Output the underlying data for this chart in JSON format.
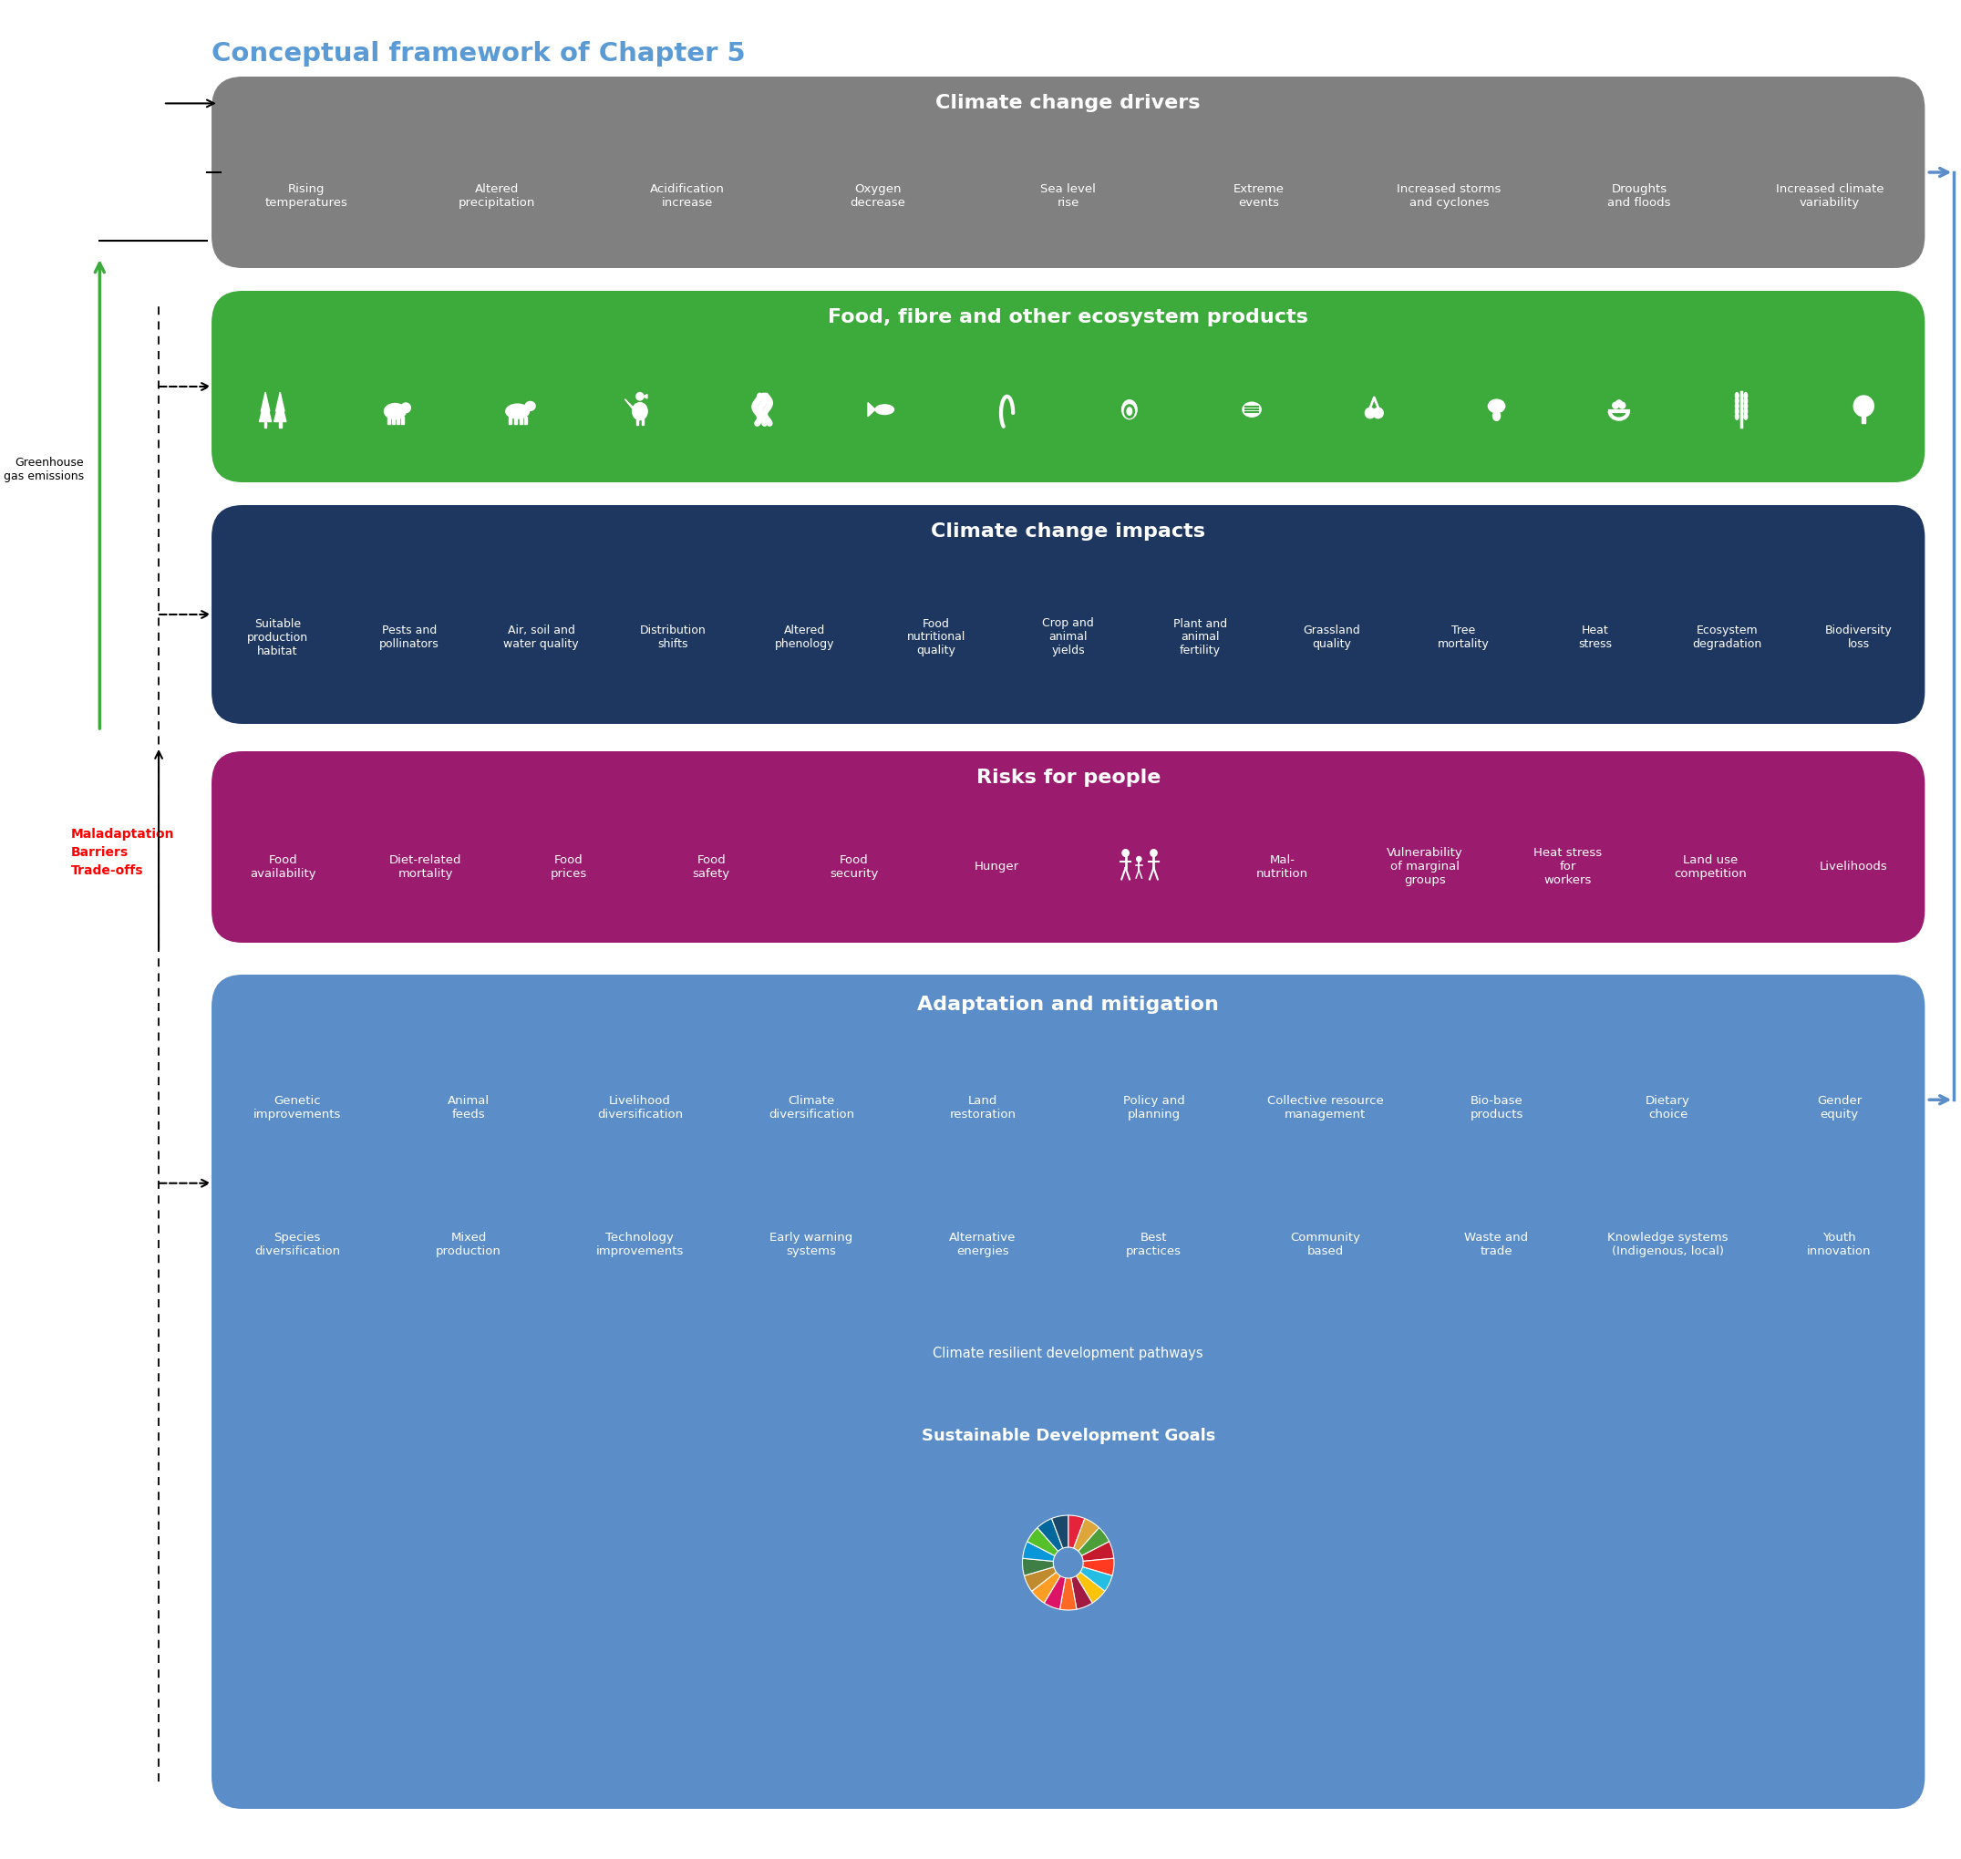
{
  "title": "Conceptual framework of Chapter 5",
  "title_color": "#5B9BD5",
  "bg_color": "#FFFFFF",
  "section1": {
    "title": "Climate change drivers",
    "bg_color": "#808080",
    "title_color": "#FFFFFF",
    "items": [
      "Rising\ntemperatures",
      "Altered\nprecipitation",
      "Acidification\nincrease",
      "Oxygen\ndecrease",
      "Sea level\nrise",
      "Extreme\nevents",
      "Increased storms\nand cyclones",
      "Droughts\nand floods",
      "Increased climate\nvariability"
    ]
  },
  "section2": {
    "title": "Food, fibre and other ecosystem products",
    "bg_color": "#3DAA3C",
    "title_color": "#FFFFFF"
  },
  "section3": {
    "title": "Climate change impacts",
    "bg_color": "#1E3761",
    "title_color": "#FFFFFF",
    "items": [
      "Suitable\nproduction\nhabitat",
      "Pests and\npollinators",
      "Air, soil and\nwater quality",
      "Distribution\nshifts",
      "Altered\nphenology",
      "Food\nnutritional\nquality",
      "Crop and\nanimal\nyields",
      "Plant and\nanimal\nfertility",
      "Grassland\nquality",
      "Tree\nmortality",
      "Heat\nstress",
      "Ecosystem\ndegradation",
      "Biodiversity\nloss"
    ]
  },
  "section4": {
    "title": "Risks for people",
    "bg_color": "#9B1B6E",
    "title_color": "#FFFFFF",
    "items_left": [
      "Food\navailability",
      "Diet-related\nmortality",
      "Food\nprices",
      "Food\nsafety",
      "Food\nsecurity",
      "Hunger"
    ],
    "items_right": [
      "Mal-\nnutrition",
      "Vulnerability\nof marginal\ngroups",
      "Heat stress\nfor\nworkers",
      "Land use\ncompetition",
      "Livelihoods"
    ]
  },
  "section5": {
    "title": "Adaptation and mitigation",
    "bg_color": "#5B8DC8",
    "title_color": "#FFFFFF",
    "items_row1": [
      "Genetic\nimprovements",
      "Animal\nfeeds",
      "Livelihood\ndiversification",
      "Climate\ndiversification",
      "Land\nrestoration",
      "Policy and\nplanning",
      "Collective resource\nmanagement",
      "Bio-base\nproducts",
      "Dietary\nchoice",
      "Gender\nequity"
    ],
    "items_row2": [
      "Species\ndiversification",
      "Mixed\nproduction",
      "Technology\nimprovements",
      "Early warning\nsystems",
      "Alternative\nenergies",
      "Best\npractices",
      "Community\nbased",
      "Waste and\ntrade",
      "Knowledge systems\n(Indigenous, local)",
      "Youth\ninnovation"
    ],
    "item_row3": "Climate resilient development pathways",
    "sdg_title": "Sustainable Development Goals"
  },
  "left_arrow_label": "Greenhouse\ngas emissions",
  "left_side_label_line1": "Maladaptation",
  "left_side_label_line2": "Barriers",
  "left_side_label_line3": "Trade-offs",
  "left_side_label_color": "#FF0000",
  "sdg_colors": [
    "#E5243B",
    "#DDA63A",
    "#4C9F38",
    "#C5192D",
    "#FF3A21",
    "#26BDE2",
    "#FCC30B",
    "#A21942",
    "#FD6925",
    "#DD1367",
    "#FD9D24",
    "#BF8B2E",
    "#3F7E44",
    "#0A97D9",
    "#56C02B",
    "#00689D",
    "#19486A"
  ]
}
